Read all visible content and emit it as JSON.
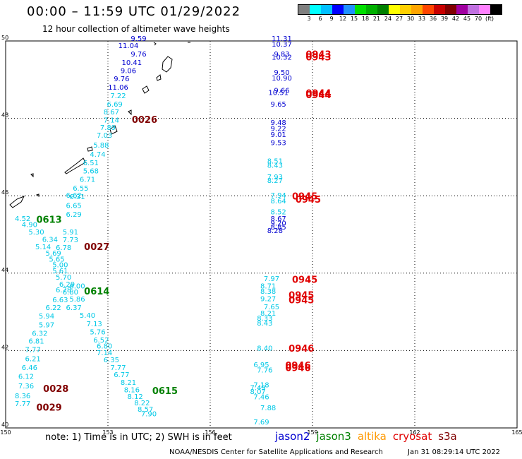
{
  "title": "00:00 – 11:59 UTC 01/29/2022",
  "subtitle": "12 hour collection of altimeter wave heights",
  "colorbar": {
    "colors": [
      "#7f7f7f",
      "#00ffff",
      "#00bfff",
      "#0000ff",
      "#1e90ff",
      "#00e000",
      "#00b000",
      "#008000",
      "#ffff00",
      "#ffd000",
      "#ffa500",
      "#ff4500",
      "#c80000",
      "#800000",
      "#a000a0",
      "#c070e0",
      "#ff80ff",
      "#000000"
    ],
    "labels": [
      "3",
      "6",
      "9",
      "12",
      "15",
      "18",
      "21",
      "24",
      "27",
      "30",
      "33",
      "36",
      "39",
      "42",
      "45",
      "70",
      "(ft)"
    ]
  },
  "axes": {
    "x_ticks": [
      "150",
      "153",
      "156",
      "159",
      "162",
      "165"
    ],
    "y_ticks": [
      "40",
      "42",
      "44",
      "46",
      "48",
      "50"
    ]
  },
  "tracks": [
    {
      "color": "#0000d0",
      "points": [
        [
          "9.59",
          153.9,
          50.0
        ],
        [
          "11.04",
          153.6,
          49.82
        ],
        [
          "9.76",
          153.9,
          49.6
        ],
        [
          "10.41",
          153.7,
          49.38
        ],
        [
          "9.06",
          153.6,
          49.17
        ],
        [
          "9.76",
          153.4,
          48.96
        ],
        [
          "11.06",
          153.3,
          48.74
        ],
        [
          "11.31",
          158.1,
          50.0
        ],
        [
          "10.37",
          158.1,
          49.85
        ],
        [
          "9.83",
          158.1,
          49.6
        ],
        [
          "10.32",
          158.1,
          49.52
        ],
        [
          "9.50",
          158.1,
          49.12
        ],
        [
          "10.90",
          158.1,
          48.98
        ],
        [
          "9.66",
          158.1,
          48.66
        ],
        [
          "10.51",
          158.0,
          48.6
        ],
        [
          "9.65",
          158.0,
          48.3
        ],
        [
          "9.48",
          158.0,
          47.83
        ],
        [
          "9.22",
          158.0,
          47.67
        ],
        [
          "9.01",
          158.0,
          47.52
        ],
        [
          "9.53",
          158.0,
          47.31
        ],
        [
          "8.67",
          158.0,
          45.35
        ],
        [
          "9.20",
          158.0,
          45.23
        ],
        [
          "8.85",
          158.0,
          45.13
        ],
        [
          "8.28",
          157.9,
          45.04
        ]
      ]
    },
    {
      "color": "#00c8e6",
      "points": [
        [
          "7.22",
          153.3,
          48.52
        ],
        [
          "6.69",
          153.2,
          48.3
        ],
        [
          "8.67",
          153.1,
          48.1
        ],
        [
          "7.14",
          153.1,
          47.89
        ],
        [
          "7.89",
          153.0,
          47.7
        ],
        [
          "7.03",
          152.9,
          47.5
        ],
        [
          "5.88",
          152.8,
          47.24
        ],
        [
          "4.74",
          152.7,
          47.01
        ],
        [
          "6.51",
          152.5,
          46.79
        ],
        [
          "5.68",
          152.5,
          46.58
        ],
        [
          "6.71",
          152.4,
          46.36
        ],
        [
          "6.55",
          152.2,
          46.13
        ],
        [
          "6.31",
          152.1,
          45.91
        ],
        [
          "6.65",
          152.0,
          45.68
        ],
        [
          "6.29",
          152.0,
          45.46
        ],
        [
          "4.52",
          150.5,
          45.35
        ],
        [
          "4.90",
          150.7,
          45.19
        ],
        [
          "5.30",
          150.9,
          45.0
        ],
        [
          "6.34",
          151.3,
          44.81
        ],
        [
          "5.14",
          151.1,
          44.62
        ],
        [
          "5.69",
          151.4,
          44.45
        ],
        [
          "5.65",
          151.5,
          44.3
        ],
        [
          "5.00",
          151.6,
          44.15
        ],
        [
          "5.61",
          151.6,
          44.0
        ],
        [
          "5.70",
          151.7,
          43.83
        ],
        [
          "6.29",
          151.8,
          43.65
        ],
        [
          "6.78",
          151.7,
          43.5
        ],
        [
          "6.80",
          151.9,
          43.45
        ],
        [
          "6.63",
          151.6,
          43.25
        ],
        [
          "6.22",
          151.4,
          43.05
        ],
        [
          "5.94",
          151.2,
          42.83
        ],
        [
          "5.97",
          151.2,
          42.6
        ],
        [
          "6.32",
          151.0,
          42.38
        ],
        [
          "6.81",
          150.9,
          42.18
        ],
        [
          "7.77",
          150.8,
          41.96
        ],
        [
          "6.21",
          150.8,
          41.72
        ],
        [
          "6.46",
          150.7,
          41.5
        ],
        [
          "6.12",
          150.6,
          41.27
        ],
        [
          "7.36",
          150.6,
          41.02
        ],
        [
          "8.36",
          150.5,
          40.77
        ],
        [
          "7.77",
          150.5,
          40.57
        ],
        [
          "6.62",
          152.0,
          45.95
        ],
        [
          "5.91",
          151.9,
          45.0
        ],
        [
          "7.73",
          151.9,
          44.8
        ],
        [
          "6.78",
          151.7,
          44.6
        ],
        [
          "6.00",
          152.1,
          43.6
        ],
        [
          "5.86",
          152.1,
          43.27
        ],
        [
          "6.37",
          152.0,
          43.05
        ],
        [
          "5.40",
          152.4,
          42.85
        ],
        [
          "7.13",
          152.6,
          42.63
        ],
        [
          "5.76",
          152.7,
          42.42
        ],
        [
          "6.52",
          152.8,
          42.21
        ],
        [
          "6.80",
          152.9,
          42.05
        ],
        [
          "7.14",
          152.9,
          41.88
        ],
        [
          "6.35",
          153.1,
          41.7
        ],
        [
          "7.77",
          153.3,
          41.5
        ],
        [
          "6.77",
          153.4,
          41.31
        ],
        [
          "8.21",
          153.6,
          41.11
        ],
        [
          "8.16",
          153.7,
          40.92
        ],
        [
          "8.12",
          153.8,
          40.75
        ],
        [
          "8.22",
          154.0,
          40.58
        ],
        [
          "8.57",
          154.1,
          40.42
        ],
        [
          "7.90",
          154.2,
          40.3
        ],
        [
          "8.51",
          157.9,
          46.83
        ],
        [
          "8.43",
          157.9,
          46.72
        ],
        [
          "7.93",
          157.9,
          46.42
        ],
        [
          "8.27",
          157.9,
          46.33
        ],
        [
          "7.94",
          158.0,
          45.95
        ],
        [
          "8.64",
          158.0,
          45.8
        ],
        [
          "8.52",
          158.0,
          45.52
        ],
        [
          "7.97",
          157.8,
          43.8
        ],
        [
          "8.71",
          157.7,
          43.6
        ],
        [
          "8.38",
          157.7,
          43.47
        ],
        [
          "9.27",
          157.7,
          43.28
        ],
        [
          "7.65",
          157.8,
          43.07
        ],
        [
          "8.21",
          157.7,
          42.9
        ],
        [
          "8.33",
          157.6,
          42.77
        ],
        [
          "8.43",
          157.6,
          42.65
        ],
        [
          "8.40",
          157.6,
          42.0
        ],
        [
          "6.95",
          157.5,
          41.57
        ],
        [
          "7.76",
          157.6,
          41.43
        ],
        [
          "7.18",
          157.5,
          41.05
        ],
        [
          "7.49",
          157.4,
          40.98
        ],
        [
          "8.07",
          157.4,
          40.88
        ],
        [
          "7.46",
          157.5,
          40.74
        ],
        [
          "7.88",
          157.7,
          40.46
        ],
        [
          "7.69",
          157.5,
          40.09
        ]
      ]
    }
  ],
  "labels": [
    {
      "text": "0026",
      "color": "#800000",
      "lon": 153.7,
      "lat": 47.88
    },
    {
      "text": "0613",
      "color": "#008000",
      "lon": 150.9,
      "lat": 45.3
    },
    {
      "text": "0027",
      "color": "#800000",
      "lon": 152.3,
      "lat": 44.6
    },
    {
      "text": "0614",
      "color": "#008000",
      "lon": 152.3,
      "lat": 43.45
    },
    {
      "text": "0028",
      "color": "#800000",
      "lon": 151.1,
      "lat": 40.93
    },
    {
      "text": "0615",
      "color": "#008000",
      "lon": 154.3,
      "lat": 40.88
    },
    {
      "text": "0029",
      "color": "#800000",
      "lon": 150.9,
      "lat": 40.45
    },
    {
      "text": "0943",
      "color": "#e00000",
      "lon": 158.8,
      "lat": 49.57
    },
    {
      "text": "0943",
      "color": "#e00000",
      "lon": 158.8,
      "lat": 49.5
    },
    {
      "text": "0944",
      "color": "#e00000",
      "lon": 158.8,
      "lat": 48.57
    },
    {
      "text": "0944",
      "color": "#e00000",
      "lon": 158.8,
      "lat": 48.52
    },
    {
      "text": "0945",
      "color": "#e00000",
      "lon": 158.4,
      "lat": 45.9
    },
    {
      "text": "0945",
      "color": "#e00000",
      "lon": 158.5,
      "lat": 45.82
    },
    {
      "text": "0945",
      "color": "#e00000",
      "lon": 158.4,
      "lat": 43.75
    },
    {
      "text": "0945",
      "color": "#e00000",
      "lon": 158.3,
      "lat": 43.35
    },
    {
      "text": "0945",
      "color": "#e00000",
      "lon": 158.3,
      "lat": 43.22
    },
    {
      "text": "0946",
      "color": "#e00000",
      "lon": 158.3,
      "lat": 41.97
    },
    {
      "text": "0946",
      "color": "#e00000",
      "lon": 158.2,
      "lat": 41.53
    },
    {
      "text": "0946",
      "color": "#e00000",
      "lon": 158.2,
      "lat": 41.47
    }
  ],
  "note": "note:  1) Time is in UTC;  2) SWH is in feet",
  "legend": [
    {
      "name": "jason2",
      "color": "#0000d0"
    },
    {
      "name": "jason3",
      "color": "#008000"
    },
    {
      "name": "altika",
      "color": "#ff9900"
    },
    {
      "name": "cryosat",
      "color": "#e00000"
    },
    {
      "name": "s3a",
      "color": "#800000"
    }
  ],
  "footer_left": "NOAA/NESDIS Center for Satellite Applications and Research",
  "footer_right": "Jan 31 08:29:14 UTC 2022"
}
